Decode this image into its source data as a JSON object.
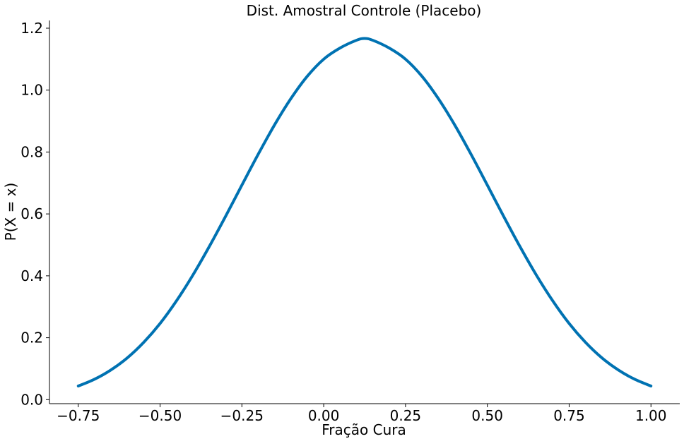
{
  "chart_data": {
    "type": "line",
    "title": "Dist. Amostral Controle (Placebo)",
    "xlabel": "Fração Cura",
    "ylabel": "P(X = x)",
    "xlim": [
      -0.838,
      1.088
    ],
    "ylim": [
      -0.013,
      1.225
    ],
    "x_ticks": [
      -0.75,
      -0.5,
      -0.25,
      0.0,
      0.25,
      0.5,
      0.75,
      1.0
    ],
    "x_tick_labels": [
      "−0.75",
      "−0.50",
      "−0.25",
      "0.00",
      "0.25",
      "0.50",
      "0.75",
      "1.00"
    ],
    "y_ticks": [
      0.0,
      0.2,
      0.4,
      0.6,
      0.8,
      1.0,
      1.2
    ],
    "y_tick_labels": [
      "0.0",
      "0.2",
      "0.4",
      "0.6",
      "0.8",
      "1.0",
      "1.2"
    ],
    "grid": false,
    "legend": "none",
    "series": [
      {
        "color": "#0072b2",
        "x": [
          -0.75,
          -0.7,
          -0.65,
          -0.6,
          -0.55,
          -0.5,
          -0.45,
          -0.4,
          -0.35,
          -0.3,
          -0.25,
          -0.2,
          -0.15,
          -0.1,
          -0.05,
          0.0,
          0.05,
          0.1,
          0.125,
          0.15,
          0.2,
          0.25,
          0.3,
          0.35,
          0.4,
          0.45,
          0.5,
          0.55,
          0.6,
          0.65,
          0.7,
          0.75,
          0.8,
          0.85,
          0.9,
          0.95,
          1.0
        ],
        "y": [
          0.044,
          0.066,
          0.096,
          0.135,
          0.185,
          0.246,
          0.319,
          0.402,
          0.494,
          0.592,
          0.693,
          0.793,
          0.888,
          0.973,
          1.045,
          1.1,
          1.136,
          1.161,
          1.167,
          1.161,
          1.136,
          1.1,
          1.045,
          0.973,
          0.888,
          0.793,
          0.693,
          0.592,
          0.494,
          0.402,
          0.319,
          0.246,
          0.185,
          0.135,
          0.096,
          0.066,
          0.044
        ]
      }
    ]
  }
}
